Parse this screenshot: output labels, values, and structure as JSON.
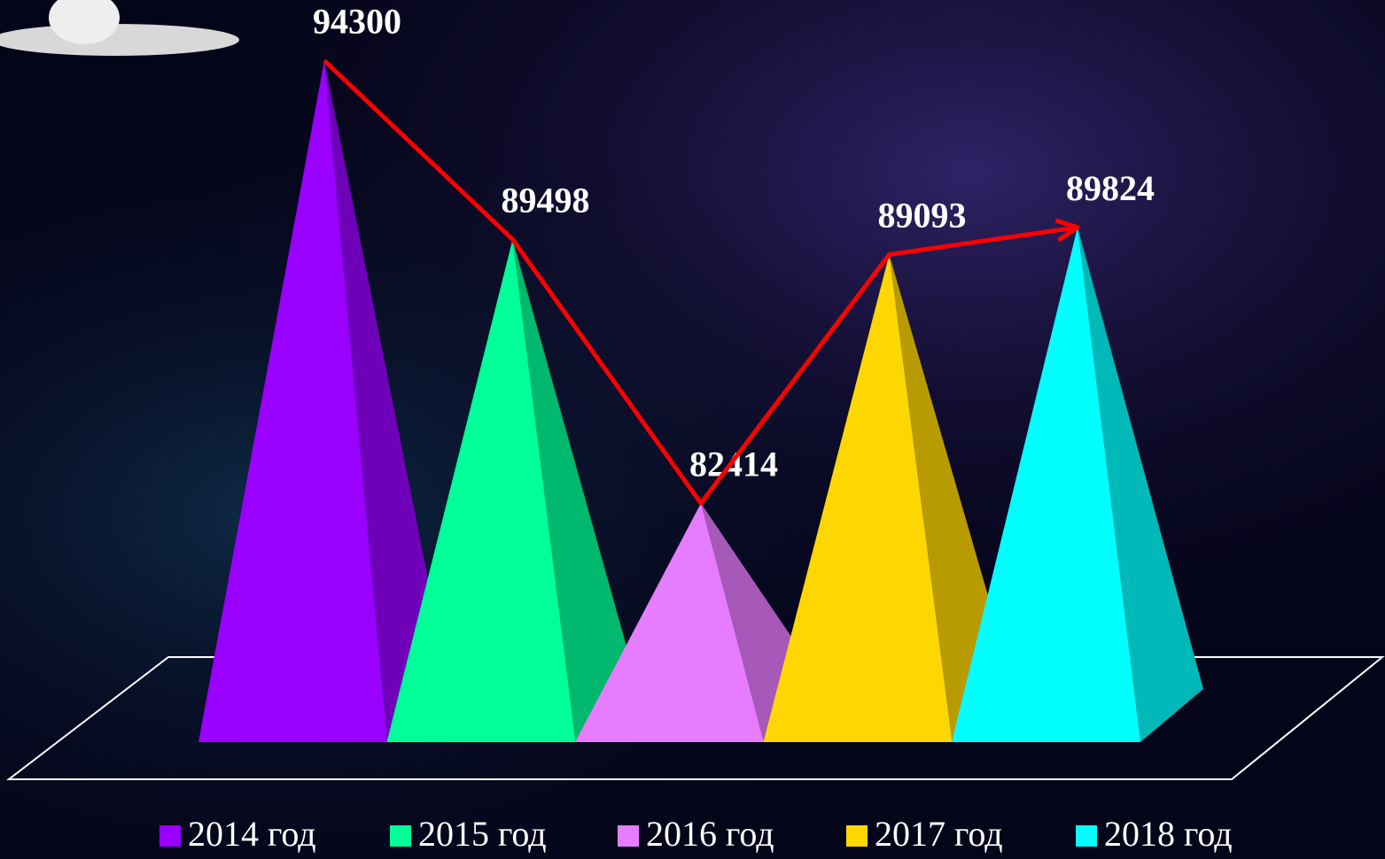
{
  "chart_data": {
    "type": "pyramid",
    "series": [
      {
        "name": "2014 год",
        "color": "#9900ff",
        "values": [
          94300
        ]
      },
      {
        "name": "2015 год",
        "color": "#00ff99",
        "values": [
          89498
        ]
      },
      {
        "name": "2016 год",
        "color": "#e67cff",
        "values": [
          82414
        ]
      },
      {
        "name": "2017 год",
        "color": "#ffd700",
        "values": [
          89093
        ]
      },
      {
        "name": "2018 год",
        "color": "#00ffff",
        "values": [
          89824
        ]
      }
    ],
    "ylim": [
      76000,
      96000
    ],
    "trend_color": "#ff0000",
    "legend": "bottom"
  }
}
